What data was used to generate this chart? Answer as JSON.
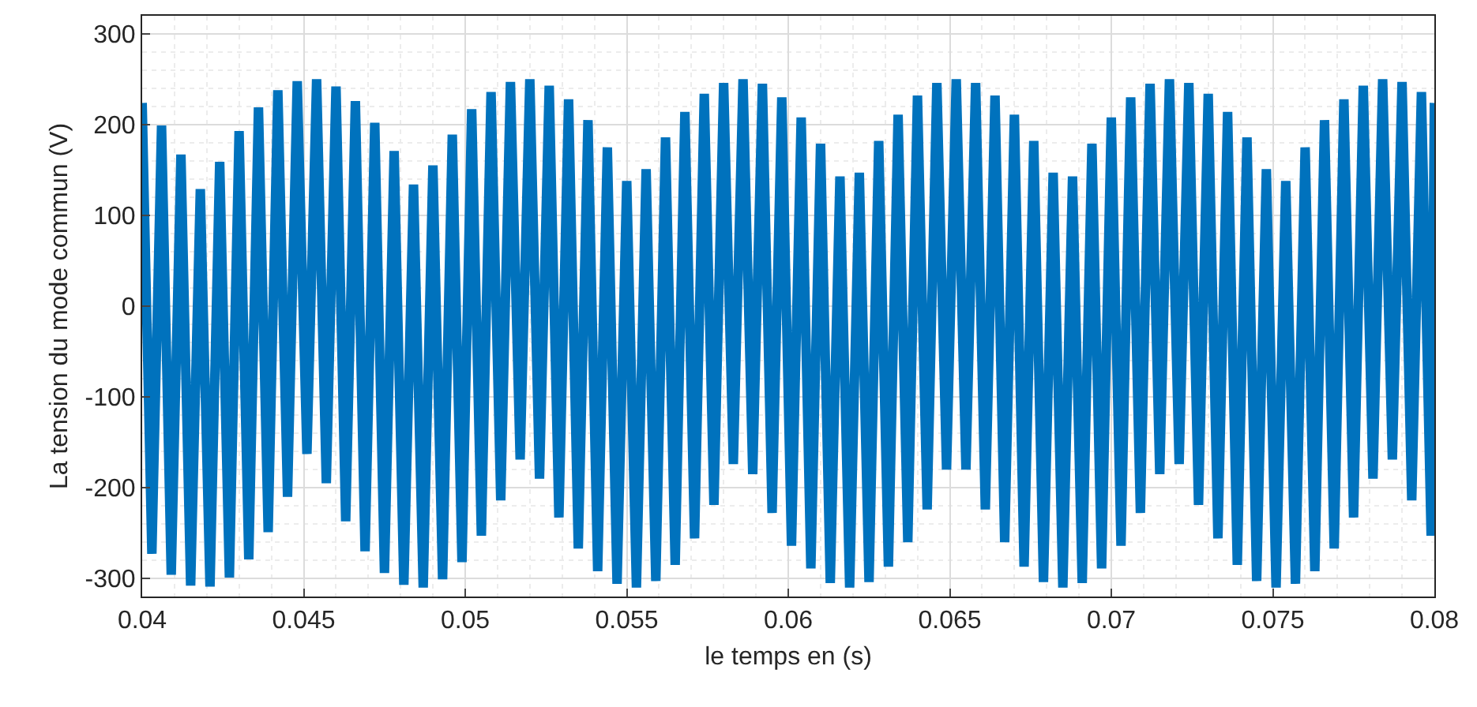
{
  "chart_data": {
    "type": "line",
    "xlabel": "le temps en (s)",
    "ylabel": "La tension du mode commun (V)",
    "x": [
      0.04,
      0.0403,
      0.0406,
      0.0409,
      0.0412,
      0.0415,
      0.0418,
      0.0421,
      0.0424,
      0.0427,
      0.043,
      0.0433,
      0.0436,
      0.0439,
      0.0442,
      0.0445,
      0.0448,
      0.0451,
      0.0454,
      0.0457,
      0.046,
      0.0463,
      0.0466,
      0.0469,
      0.0472,
      0.0475,
      0.0478,
      0.0481,
      0.0484,
      0.0487,
      0.049,
      0.0493,
      0.0496,
      0.0499,
      0.0502,
      0.0505,
      0.0508,
      0.0511,
      0.0514,
      0.0517,
      0.052,
      0.0523,
      0.0526,
      0.0529,
      0.0532,
      0.0535,
      0.0538,
      0.0541,
      0.0544,
      0.0547,
      0.055,
      0.0553,
      0.0556,
      0.0559,
      0.0562,
      0.0565,
      0.0568,
      0.0571,
      0.0574,
      0.0577,
      0.058,
      0.0583,
      0.0586,
      0.0589,
      0.0592,
      0.0595,
      0.0598,
      0.0601,
      0.0604,
      0.0607,
      0.061,
      0.0613,
      0.0616,
      0.0619,
      0.0622,
      0.0625,
      0.0628,
      0.0631,
      0.0634,
      0.0637,
      0.064,
      0.0643,
      0.0646,
      0.0649,
      0.0652,
      0.0655,
      0.0658,
      0.0661,
      0.0664,
      0.0667,
      0.067,
      0.0673,
      0.0676,
      0.0679,
      0.0682,
      0.0685,
      0.0688,
      0.0691,
      0.0694,
      0.0697,
      0.07,
      0.0703,
      0.0706,
      0.0709,
      0.0712,
      0.0715,
      0.0718,
      0.0721,
      0.0724,
      0.0727,
      0.073,
      0.0733,
      0.0736,
      0.0739,
      0.0742,
      0.0745,
      0.0748,
      0.0751,
      0.0754,
      0.0757,
      0.076,
      0.0763,
      0.0766,
      0.0769,
      0.0772,
      0.0775,
      0.0778,
      0.0781,
      0.0784,
      0.0787,
      0.079,
      0.0793,
      0.0796,
      0.0799,
      0.08
    ],
    "series": [
      {
        "color": "#0072bd",
        "values": [
          224,
          -273,
          199,
          -296,
          167,
          -308,
          129,
          -309,
          159,
          -299,
          193,
          -279,
          219,
          -249,
          238,
          -210,
          248,
          -163,
          250,
          -195,
          242,
          -237,
          226,
          -270,
          202,
          -294,
          171,
          -307,
          134,
          -310,
          155,
          -301,
          189,
          -282,
          217,
          -253,
          236,
          -214,
          247,
          -169,
          250,
          -190,
          243,
          -233,
          228,
          -267,
          205,
          -292,
          175,
          -306,
          138,
          -310,
          151,
          -303,
          186,
          -285,
          214,
          -256,
          234,
          -219,
          246,
          -174,
          250,
          -185,
          245,
          -228,
          230,
          -264,
          208,
          -289,
          179,
          -305,
          143,
          -310,
          147,
          -304,
          182,
          -287,
          211,
          -260,
          232,
          -224,
          246,
          -180,
          250,
          -180,
          246,
          -224,
          232,
          -260,
          211,
          -287,
          182,
          -304,
          147,
          -310,
          143,
          -305,
          179,
          -289,
          208,
          -264,
          230,
          -228,
          245,
          -185,
          250,
          -174,
          246,
          -219,
          234,
          -256,
          214,
          -285,
          186,
          -303,
          151,
          -310,
          138,
          -306,
          175,
          -292,
          205,
          -267,
          228,
          -233,
          243,
          -190,
          250,
          -169,
          247,
          -214,
          236,
          -253,
          224
        ]
      }
    ],
    "xlim": [
      0.04,
      0.08
    ],
    "xticks": [
      0.04,
      0.045,
      0.05,
      0.055,
      0.06,
      0.065,
      0.07,
      0.075,
      0.08
    ],
    "ylim": [
      -320,
      320
    ],
    "yticks": [
      -300,
      -200,
      -100,
      0,
      100,
      200,
      300
    ],
    "grid": true,
    "marker": "none",
    "line_style": "solid"
  }
}
